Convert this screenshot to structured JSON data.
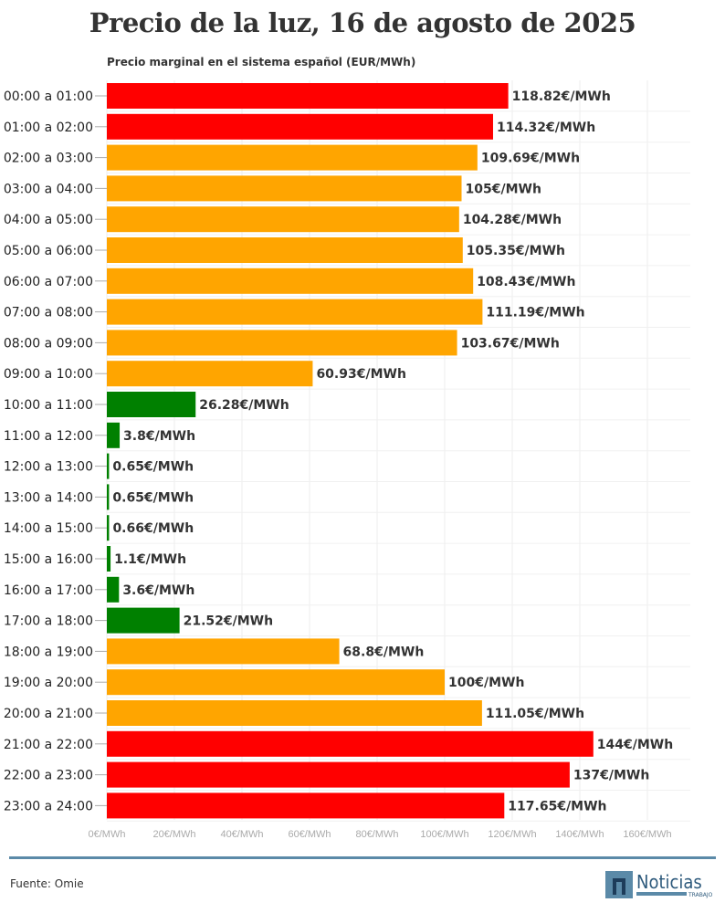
{
  "chart_data": {
    "type": "bar",
    "orientation": "horizontal",
    "title": "Precio de la luz, 16 de agosto de 2025",
    "subtitle": "Precio marginal en el sistema español (EUR/MWh)",
    "categories": [
      "00:00 a 01:00",
      "01:00 a 02:00",
      "02:00 a 03:00",
      "03:00 a 04:00",
      "04:00 a 05:00",
      "05:00 a 06:00",
      "06:00 a 07:00",
      "07:00 a 08:00",
      "08:00 a 09:00",
      "09:00 a 10:00",
      "10:00 a 11:00",
      "11:00 a 12:00",
      "12:00 a 13:00",
      "13:00 a 14:00",
      "14:00 a 15:00",
      "15:00 a 16:00",
      "16:00 a 17:00",
      "17:00 a 18:00",
      "18:00 a 19:00",
      "19:00 a 20:00",
      "20:00 a 21:00",
      "21:00 a 22:00",
      "22:00 a 23:00",
      "23:00 a 24:00"
    ],
    "values": [
      118.82,
      114.32,
      109.69,
      105,
      104.28,
      105.35,
      108.43,
      111.19,
      103.67,
      60.93,
      26.28,
      3.8,
      0.65,
      0.65,
      0.66,
      1.1,
      3.6,
      21.52,
      68.8,
      100,
      111.05,
      144,
      137,
      117.65
    ],
    "value_labels": [
      "118.82€/MWh",
      "114.32€/MWh",
      "109.69€/MWh",
      "105€/MWh",
      "104.28€/MWh",
      "105.35€/MWh",
      "108.43€/MWh",
      "111.19€/MWh",
      "103.67€/MWh",
      "60.93€/MWh",
      "26.28€/MWh",
      "3.8€/MWh",
      "0.65€/MWh",
      "0.65€/MWh",
      "0.66€/MWh",
      "1.1€/MWh",
      "3.6€/MWh",
      "21.52€/MWh",
      "68.8€/MWh",
      "100€/MWh",
      "111.05€/MWh",
      "144€/MWh",
      "137€/MWh",
      "117.65€/MWh"
    ],
    "bar_colors": [
      "red",
      "red",
      "orange",
      "orange",
      "orange",
      "orange",
      "orange",
      "orange",
      "orange",
      "orange",
      "green",
      "green",
      "green",
      "green",
      "green",
      "green",
      "green",
      "green",
      "orange",
      "orange",
      "orange",
      "red",
      "red",
      "red"
    ],
    "colors": {
      "red": "#ff0000",
      "orange": "#ffa500",
      "green": "#008000"
    },
    "xlim": [
      0,
      170
    ],
    "x_ticks": [
      0,
      20,
      40,
      60,
      80,
      100,
      120,
      140,
      160
    ],
    "x_tick_labels": [
      "0€/MWh",
      "20€/MWh",
      "40€/MWh",
      "60€/MWh",
      "80€/MWh",
      "100€/MWh",
      "120€/MWh",
      "140€/MWh",
      "160€/MWh"
    ],
    "grid": true
  },
  "footer": {
    "source": "Fuente: Omie",
    "logo_text": "Noticias",
    "logo_subtext": "TRABAJO"
  }
}
